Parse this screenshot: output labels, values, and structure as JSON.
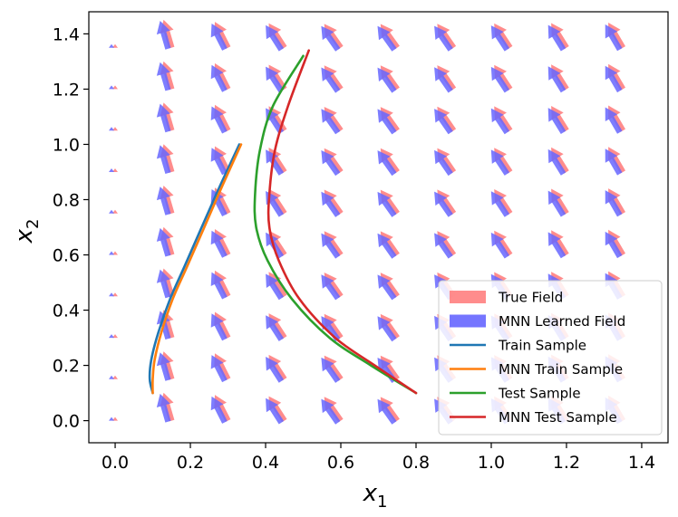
{
  "chart_data": {
    "type": "line",
    "title": "",
    "xlabel": "x",
    "xlabel_sub": "1",
    "ylabel": "x",
    "ylabel_sub": "2",
    "xlim": [
      -0.07,
      1.47
    ],
    "ylim": [
      -0.08,
      1.48
    ],
    "xticks": [
      0.0,
      0.2,
      0.4,
      0.6,
      0.8,
      1.0,
      1.2,
      1.4
    ],
    "yticks": [
      0.0,
      0.2,
      0.4,
      0.6,
      0.8,
      1.0,
      1.2,
      1.4
    ],
    "xtick_labels": [
      "0.0",
      "0.2",
      "0.4",
      "0.6",
      "0.8",
      "1.0",
      "1.2",
      "1.4"
    ],
    "ytick_labels": [
      "0.0",
      "0.2",
      "0.4",
      "0.6",
      "0.8",
      "1.0",
      "1.2",
      "1.4"
    ],
    "grid": false,
    "legend_position": "bottom-right",
    "quiver": {
      "grid_x": [
        0.0,
        0.15,
        0.3,
        0.45,
        0.6,
        0.75,
        0.9,
        1.05,
        1.2,
        1.35
      ],
      "grid_y": [
        0.0,
        0.15,
        0.3,
        0.45,
        0.6,
        0.75,
        0.9,
        1.05,
        1.2,
        1.35
      ],
      "vector_field": {
        "u": "-x1",
        "v": "x1*x1 + 0.5"
      },
      "series": [
        {
          "name": "True Field",
          "color": "#ff8080",
          "offset": 0
        },
        {
          "name": "MNN Learned Field",
          "color": "#6666ff",
          "offset": 1
        }
      ]
    },
    "series": [
      {
        "name": "Train Sample",
        "color": "#1f77b4",
        "x": [
          0.1,
          0.092,
          0.096,
          0.115,
          0.146,
          0.185,
          0.23,
          0.279,
          0.33
        ],
        "y": [
          0.1,
          0.15,
          0.22,
          0.32,
          0.44,
          0.56,
          0.7,
          0.85,
          1.0
        ]
      },
      {
        "name": "MNN Train Sample",
        "color": "#ff7f0e",
        "x": [
          0.1,
          0.1,
          0.105,
          0.123,
          0.153,
          0.192,
          0.237,
          0.285,
          0.335
        ],
        "y": [
          0.1,
          0.15,
          0.22,
          0.32,
          0.44,
          0.56,
          0.7,
          0.85,
          1.0
        ]
      },
      {
        "name": "Test Sample",
        "color": "#2ca02c",
        "x": [
          0.8,
          0.68,
          0.57,
          0.47,
          0.405,
          0.375,
          0.372,
          0.385,
          0.42,
          0.5
        ],
        "y": [
          0.1,
          0.2,
          0.3,
          0.44,
          0.58,
          0.7,
          0.82,
          0.98,
          1.14,
          1.32
        ]
      },
      {
        "name": "MNN Test Sample",
        "color": "#d62728",
        "x": [
          0.8,
          0.69,
          0.585,
          0.49,
          0.435,
          0.41,
          0.41,
          0.425,
          0.46,
          0.515
        ],
        "y": [
          0.1,
          0.2,
          0.3,
          0.44,
          0.58,
          0.7,
          0.82,
          0.98,
          1.14,
          1.34
        ]
      }
    ]
  }
}
